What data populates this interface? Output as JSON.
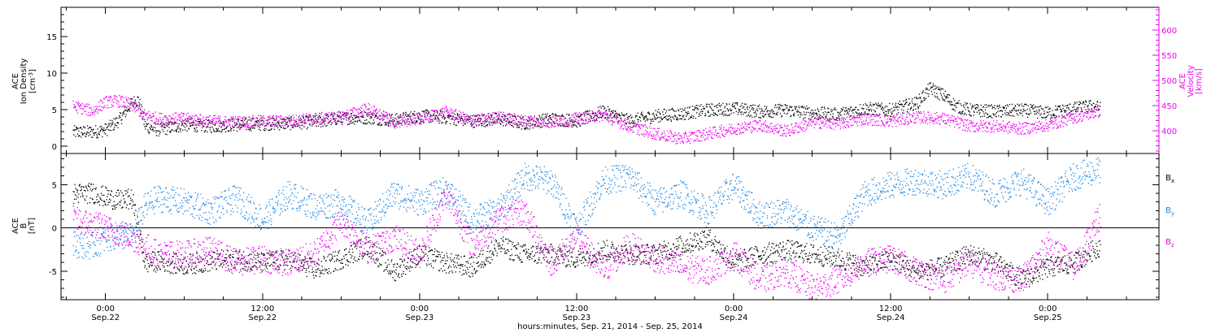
{
  "colors": {
    "density": "#000000",
    "velocity": "#ee00ee",
    "bx": "#000000",
    "by": "#1e88e5",
    "bz": "#ee00ee",
    "axis": "#000000",
    "right_axis": "#ee00ee"
  },
  "chart_data": [
    {
      "type": "scatter",
      "panel": "top",
      "ylabel": {
        "line1": "ACE",
        "line2": "Ion Density",
        "unit": "[cm",
        "unit_exp": "-3",
        "unit_end": "]"
      },
      "ylabel_right": {
        "line1": "ACE",
        "line2": "Velocity",
        "unit": "[km/s]"
      },
      "ylim": [
        -1,
        19
      ],
      "y_ticks": [
        0,
        5,
        10,
        15
      ],
      "ylim_right": [
        355,
        645
      ],
      "y_ticks_right": [
        400,
        450,
        500,
        550,
        600
      ],
      "series": [
        {
          "axis": "left",
          "color": "#000000",
          "x": [
            -2.5,
            -1,
            0,
            1,
            2,
            2.5,
            3,
            4,
            6,
            8,
            10,
            12,
            14,
            16,
            18,
            20,
            22,
            24,
            26,
            28,
            30,
            32,
            34,
            36,
            38,
            40,
            42,
            44,
            46,
            48,
            50,
            52,
            54,
            56,
            58,
            60,
            62,
            63,
            64,
            65,
            66,
            68,
            70,
            72,
            74,
            75.5,
            76
          ],
          "y": [
            2.0,
            2.0,
            2.3,
            3.6,
            6.0,
            6.4,
            2.8,
            2.3,
            3.0,
            2.8,
            3.0,
            3.1,
            3.2,
            3.4,
            3.9,
            4.0,
            3.6,
            4.2,
            4.0,
            3.5,
            3.8,
            3.2,
            3.8,
            3.5,
            4.8,
            3.5,
            4.2,
            4.5,
            5.0,
            5.2,
            4.8,
            5.0,
            4.6,
            4.4,
            5.2,
            5.0,
            6.0,
            8.0,
            7.0,
            5.5,
            5.0,
            4.8,
            5.0,
            4.6,
            5.2,
            5.6,
            5.2
          ]
        },
        {
          "axis": "right",
          "color": "#ee00ee",
          "x": [
            -2.5,
            -1,
            0,
            1,
            2,
            3,
            4,
            6,
            8,
            10,
            12,
            14,
            16,
            18,
            20,
            22,
            24,
            26,
            28,
            30,
            32,
            34,
            36,
            38,
            40,
            42,
            44,
            46,
            48,
            50,
            52,
            54,
            56,
            58,
            60,
            62,
            64,
            66,
            68,
            70,
            72,
            74,
            76
          ],
          "y": [
            450,
            440,
            458,
            460,
            452,
            432,
            425,
            425,
            420,
            418,
            420,
            420,
            425,
            428,
            445,
            418,
            425,
            438,
            420,
            428,
            420,
            418,
            425,
            432,
            410,
            395,
            385,
            395,
            405,
            412,
            400,
            418,
            415,
            425,
            420,
            428,
            425,
            410,
            410,
            405,
            412,
            428,
            440
          ]
        }
      ]
    },
    {
      "type": "scatter",
      "panel": "bottom",
      "ylabel": {
        "line1": "ACE",
        "line2": "B",
        "unit": "[nT]"
      },
      "ylim": [
        -8.3,
        8.6
      ],
      "y_ticks": [
        -5,
        0,
        5
      ],
      "zero_line": 0,
      "legend": [
        {
          "text": "B",
          "sub": "x",
          "color": "#000000"
        },
        {
          "text": "B",
          "sub": "y",
          "color": "#1e88e5"
        },
        {
          "text": "B",
          "sub": "z",
          "color": "#ee00ee"
        }
      ],
      "series": [
        {
          "name": "Bx",
          "color": "#000000",
          "x": [
            -2.5,
            -1,
            0,
            1,
            2,
            3,
            4,
            6,
            8,
            10,
            12,
            14,
            16,
            18,
            20,
            22,
            24,
            26,
            28,
            30,
            32,
            34,
            36,
            38,
            40,
            42,
            44,
            46,
            48,
            50,
            52,
            54,
            56,
            58,
            60,
            62,
            64,
            66,
            68,
            70,
            72,
            74,
            76
          ],
          "y": [
            4.0,
            4.1,
            3.6,
            3.2,
            3.4,
            -4.0,
            -3.8,
            -4.2,
            -3.8,
            -3.5,
            -4.0,
            -3.6,
            -4.8,
            -3.5,
            -2.0,
            -5.0,
            -3.0,
            -4.0,
            -4.5,
            -2.0,
            -3.0,
            -3.0,
            -3.5,
            -2.5,
            -3.0,
            -3.0,
            -2.0,
            -1.0,
            -4.0,
            -3.0,
            -2.5,
            -3.0,
            -3.5,
            -4.5,
            -3.5,
            -5.0,
            -4.5,
            -3.0,
            -4.0,
            -6.0,
            -4.5,
            -4.0,
            -2.0
          ]
        },
        {
          "name": "By",
          "color": "#1e88e5",
          "x": [
            -2.5,
            -1,
            0,
            1,
            2,
            3,
            4,
            6,
            8,
            10,
            12,
            14,
            16,
            18,
            20,
            22,
            24,
            26,
            28,
            30,
            32,
            34,
            36,
            38,
            40,
            42,
            44,
            46,
            48,
            50,
            52,
            54,
            56,
            58,
            60,
            62,
            64,
            66,
            68,
            70,
            72,
            74,
            76
          ],
          "y": [
            -1.8,
            -2.0,
            -1.2,
            -0.8,
            -1.0,
            2.5,
            3.5,
            3.0,
            2.0,
            3.5,
            1.0,
            4.0,
            2.5,
            3.0,
            0.5,
            4.0,
            3.0,
            4.5,
            1.0,
            2.0,
            6.0,
            5.5,
            0.0,
            5.5,
            6.0,
            3.0,
            4.0,
            2.0,
            5.0,
            1.5,
            2.0,
            0.0,
            -1.0,
            4.0,
            5.0,
            5.5,
            5.0,
            6.0,
            4.0,
            5.5,
            3.0,
            6.0,
            6.8
          ]
        },
        {
          "name": "Bz",
          "color": "#ee00ee",
          "x": [
            -2.5,
            -1,
            0,
            1,
            2,
            3,
            4,
            6,
            8,
            10,
            12,
            14,
            16,
            18,
            20,
            22,
            24,
            26,
            28,
            30,
            32,
            34,
            36,
            38,
            40,
            42,
            44,
            46,
            48,
            50,
            52,
            54,
            56,
            58,
            60,
            62,
            64,
            66,
            68,
            70,
            72,
            74,
            76
          ],
          "y": [
            1.0,
            0.5,
            0.0,
            -0.5,
            -1.0,
            -2.0,
            -3.0,
            -3.0,
            -2.5,
            -4.0,
            -3.5,
            -4.0,
            -3.0,
            1.0,
            -2.5,
            -1.0,
            -3.0,
            4.0,
            -2.0,
            1.0,
            2.0,
            -4.0,
            -1.0,
            -5.0,
            -2.0,
            -3.5,
            -4.5,
            -5.0,
            -3.0,
            -6.0,
            -5.0,
            -7.0,
            -6.0,
            -4.0,
            -3.5,
            -5.0,
            -6.0,
            -4.0,
            -5.5,
            -6.0,
            -2.0,
            -4.5,
            1.5
          ]
        }
      ]
    }
  ],
  "x_axis": {
    "title": "hours:minutes, Sep. 21, 2014 - Sep. 25, 2014",
    "range": [
      -3.4,
      80.5
    ],
    "ticks": [
      {
        "x": 0,
        "time": "0:00",
        "date": "Sep.22"
      },
      {
        "x": 12,
        "time": "12:00",
        "date": "Sep.22"
      },
      {
        "x": 24,
        "time": "0:00",
        "date": "Sep.23"
      },
      {
        "x": 36,
        "time": "12:00",
        "date": "Sep.23"
      },
      {
        "x": 48,
        "time": "0:00",
        "date": "Sep.24"
      },
      {
        "x": 60,
        "time": "12:00",
        "date": "Sep.24"
      },
      {
        "x": 72,
        "time": "0:00",
        "date": "Sep.25"
      }
    ]
  }
}
